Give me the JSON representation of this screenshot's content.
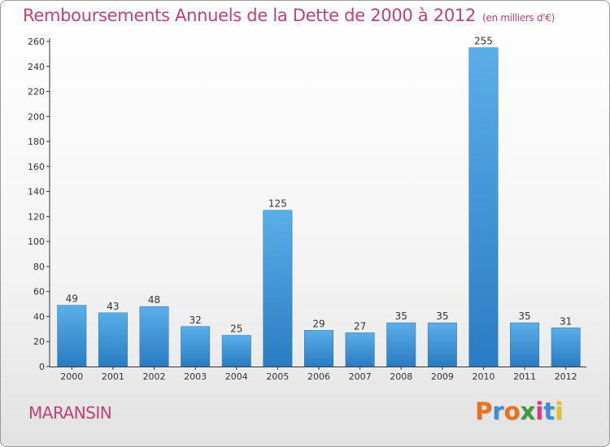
{
  "header": {
    "title": "Remboursements Annuels de la Dette de 2000 à 2012",
    "unit": "(en milliers d'€)"
  },
  "footer": {
    "commune": "MARANSIN",
    "brand": "Proxiti",
    "brand_colors": [
      "#e8731a",
      "#3a8fd6",
      "#e8731a",
      "#3a9c3a",
      "#d83a8a",
      "#3a8fd6",
      "#e8c21a"
    ]
  },
  "chart_data": {
    "type": "bar",
    "title": "Remboursements Annuels de la Dette de 2000 à 2012",
    "categories": [
      "2000",
      "2001",
      "2002",
      "2003",
      "2004",
      "2005",
      "2006",
      "2007",
      "2008",
      "2009",
      "2010",
      "2011",
      "2012"
    ],
    "values": [
      49,
      43,
      48,
      32,
      25,
      125,
      29,
      27,
      35,
      35,
      255,
      35,
      31
    ],
    "ylim": [
      0,
      260
    ],
    "yticks": [
      0,
      20,
      40,
      60,
      80,
      100,
      120,
      140,
      160,
      180,
      200,
      220,
      240,
      260
    ],
    "grid": false,
    "legend": "none",
    "bar_color": "#3d95dc",
    "bar_color_dark": "#2a77bd"
  }
}
